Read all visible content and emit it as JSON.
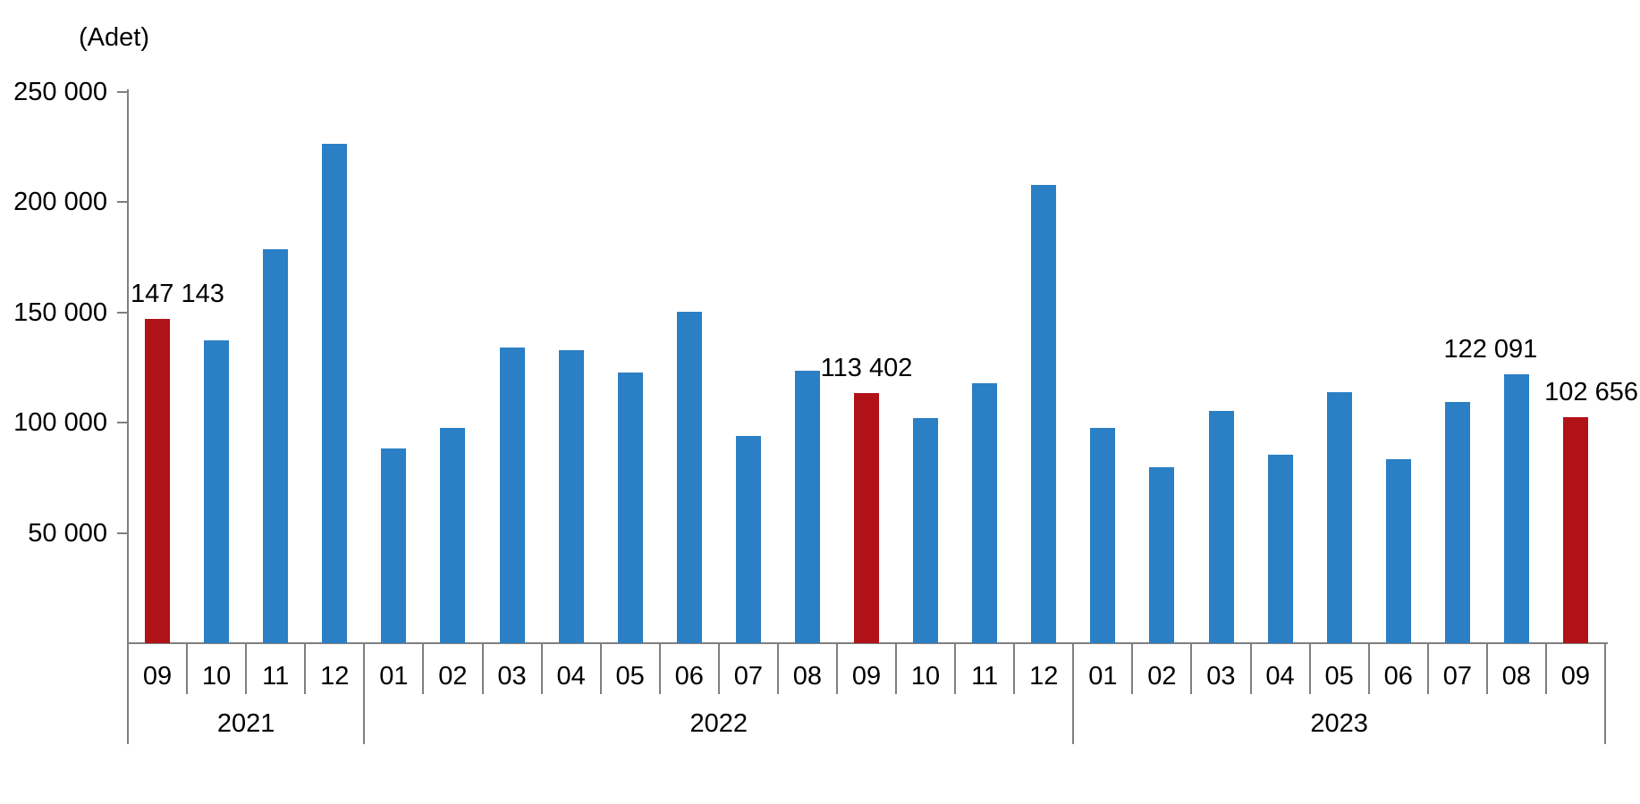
{
  "chart_data": {
    "type": "bar",
    "unit_label": "(Adet)",
    "y_axis": {
      "min": 0,
      "max": 250000,
      "tick_values": [
        250000,
        200000,
        150000,
        100000,
        50000
      ],
      "tick_labels": [
        "250 000",
        "200 000",
        "150 000",
        "100 000",
        "50 000"
      ],
      "grid": false
    },
    "x_axis": {
      "year_groups": [
        {
          "year": "2021",
          "months": [
            "09",
            "10",
            "11",
            "12"
          ]
        },
        {
          "year": "2022",
          "months": [
            "01",
            "02",
            "03",
            "04",
            "05",
            "06",
            "07",
            "08",
            "09",
            "10",
            "11",
            "12"
          ]
        },
        {
          "year": "2023",
          "months": [
            "01",
            "02",
            "03",
            "04",
            "05",
            "06",
            "07",
            "08",
            "09"
          ]
        }
      ]
    },
    "bars": [
      {
        "year": "2021",
        "month": "09",
        "value": 147143,
        "highlighted": true,
        "label": "147 143"
      },
      {
        "year": "2021",
        "month": "10",
        "value": 137400,
        "highlighted": false,
        "label": null
      },
      {
        "year": "2021",
        "month": "11",
        "value": 178800,
        "highlighted": false,
        "label": null
      },
      {
        "year": "2021",
        "month": "12",
        "value": 226500,
        "highlighted": false,
        "label": null
      },
      {
        "year": "2022",
        "month": "01",
        "value": 88300,
        "highlighted": false,
        "label": null
      },
      {
        "year": "2022",
        "month": "02",
        "value": 97600,
        "highlighted": false,
        "label": null
      },
      {
        "year": "2022",
        "month": "03",
        "value": 134200,
        "highlighted": false,
        "label": null
      },
      {
        "year": "2022",
        "month": "04",
        "value": 133100,
        "highlighted": false,
        "label": null
      },
      {
        "year": "2022",
        "month": "05",
        "value": 122800,
        "highlighted": false,
        "label": null
      },
      {
        "year": "2022",
        "month": "06",
        "value": 150500,
        "highlighted": false,
        "label": null
      },
      {
        "year": "2022",
        "month": "07",
        "value": 93900,
        "highlighted": false,
        "label": null
      },
      {
        "year": "2022",
        "month": "08",
        "value": 123500,
        "highlighted": false,
        "label": null
      },
      {
        "year": "2022",
        "month": "09",
        "value": 113402,
        "highlighted": true,
        "label": "113 402"
      },
      {
        "year": "2022",
        "month": "10",
        "value": 102200,
        "highlighted": false,
        "label": null
      },
      {
        "year": "2022",
        "month": "11",
        "value": 117800,
        "highlighted": false,
        "label": null
      },
      {
        "year": "2022",
        "month": "12",
        "value": 208000,
        "highlighted": false,
        "label": null
      },
      {
        "year": "2023",
        "month": "01",
        "value": 97700,
        "highlighted": false,
        "label": null
      },
      {
        "year": "2023",
        "month": "02",
        "value": 80000,
        "highlighted": false,
        "label": null
      },
      {
        "year": "2023",
        "month": "03",
        "value": 105500,
        "highlighted": false,
        "label": null
      },
      {
        "year": "2023",
        "month": "04",
        "value": 85700,
        "highlighted": false,
        "label": null
      },
      {
        "year": "2023",
        "month": "05",
        "value": 113800,
        "highlighted": false,
        "label": null
      },
      {
        "year": "2023",
        "month": "06",
        "value": 83600,
        "highlighted": false,
        "label": null
      },
      {
        "year": "2023",
        "month": "07",
        "value": 109500,
        "highlighted": false,
        "label": null
      },
      {
        "year": "2023",
        "month": "08",
        "value": 122091,
        "highlighted": false,
        "label": "122 091"
      },
      {
        "year": "2023",
        "month": "09",
        "value": 102656,
        "highlighted": true,
        "label": "102 656"
      }
    ],
    "colors": {
      "bar": "#2B7FC4",
      "bar_highlight": "#B11218",
      "axis": "#7F7F7F",
      "text": "#000000"
    },
    "legend": null
  }
}
